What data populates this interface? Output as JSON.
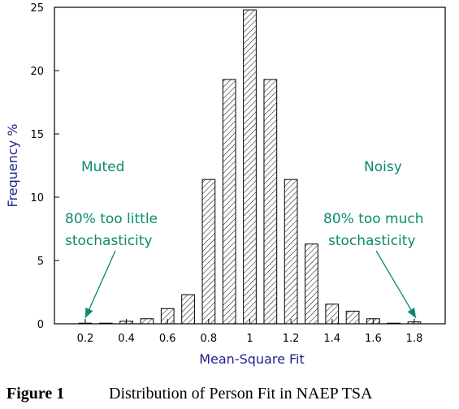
{
  "chart_data": {
    "type": "bar",
    "x": [
      0.2,
      0.3,
      0.4,
      0.5,
      0.6,
      0.7,
      0.8,
      0.9,
      1.0,
      1.1,
      1.2,
      1.3,
      1.4,
      1.5,
      1.6,
      1.7,
      1.8
    ],
    "values": [
      0.05,
      0.05,
      0.2,
      0.4,
      1.2,
      2.3,
      11.4,
      19.3,
      24.8,
      19.3,
      11.4,
      6.3,
      1.55,
      1.0,
      0.4,
      0.05,
      0.15
    ],
    "xlabel": "Mean-Square Fit",
    "ylabel": "Frequency %",
    "xlim": [
      0.05,
      1.95
    ],
    "ylim": [
      0,
      25
    ],
    "x_ticks": [
      "0.2",
      "0.4",
      "0.6",
      "0.8",
      "1",
      "1.2",
      "1.4",
      "1.6",
      "1.8"
    ],
    "y_ticks": [
      "0",
      "5",
      "10",
      "15",
      "20",
      "25"
    ],
    "bar_pattern": "diagonal-hatch",
    "grid": false,
    "annotations": {
      "muted": "Muted",
      "noisy": "Noisy",
      "left_line1": "80% too little",
      "left_line2": "stochasticity",
      "right_line1": "80% too much",
      "right_line2": "stochasticity",
      "left_arrow_target_x": 0.2,
      "right_arrow_target_x": 1.8
    },
    "colors": {
      "annotation": "#0c8a6e",
      "axis_title": "#1f1f8f",
      "bars": "#000000"
    }
  },
  "caption": {
    "label": "Figure 1",
    "text": "Distribution of Person Fit in NAEP TSA"
  }
}
